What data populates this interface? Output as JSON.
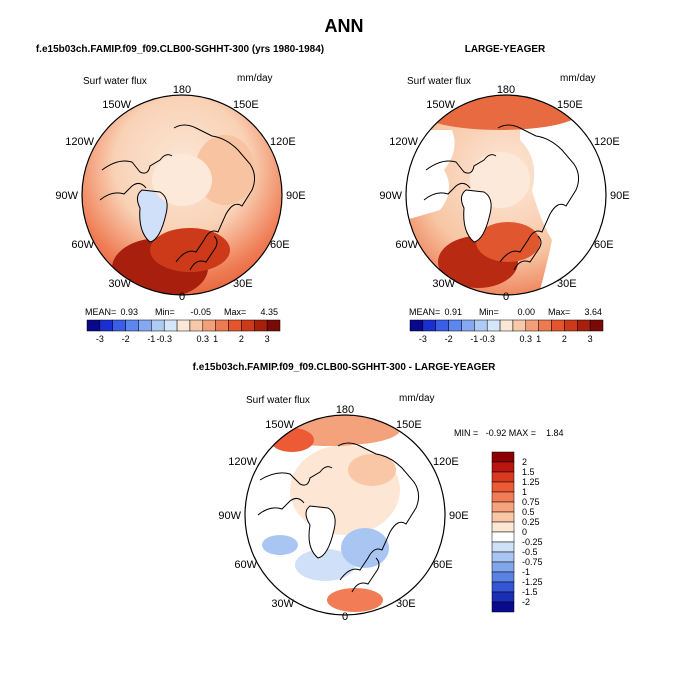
{
  "page_title": "ANN",
  "panels": {
    "left": {
      "title": "f.e15b03ch.FAMIP.f09_f09.CLB00-SGHHT-300 (yrs 1980-1984)",
      "var_label": "Surf water flux",
      "units": "mm/day",
      "stats": {
        "mean_label": "MEAN=",
        "mean": "0.93",
        "min_label": "Min=",
        "min": "-0.05",
        "max_label": "Max=",
        "max": "4.35"
      }
    },
    "right": {
      "title": "LARGE-YEAGER",
      "var_label": "Surf water flux",
      "units": "mm/day",
      "stats": {
        "mean_label": "MEAN=",
        "mean": "0.91",
        "min_label": "Min=",
        "min": "0.00",
        "max_label": "Max=",
        "max": "3.64"
      }
    },
    "diff": {
      "title": "f.e15b03ch.FAMIP.f09_f09.CLB00-SGHHT-300 - LARGE-YEAGER",
      "var_label": "Surf water flux",
      "units": "mm/day",
      "minmax_text": "MIN =   -0.92 MAX =    1.84"
    }
  },
  "lon_labels": [
    "180",
    "150E",
    "120E",
    "90E",
    "60E",
    "30E",
    "0",
    "30W",
    "60W",
    "90W",
    "120W",
    "150W"
  ],
  "colorbar_h": {
    "labels": [
      "-3",
      "-2",
      "-1",
      "-0.3",
      "0.3",
      "1",
      "2",
      "3"
    ],
    "colors": [
      "#08088c",
      "#1a2fd0",
      "#3a5ee8",
      "#5c86f0",
      "#86a8f2",
      "#aecbf5",
      "#d6e6fa",
      "#fbe7d6",
      "#f8c9a8",
      "#f3a07a",
      "#ee7a52",
      "#e4552e",
      "#cc3a19",
      "#a8200d",
      "#7a0a06"
    ]
  },
  "colorbar_v": {
    "labels": [
      "2",
      "1.5",
      "1.25",
      "1",
      "0.75",
      "0.5",
      "0.25",
      "0",
      "-0.25",
      "-0.5",
      "-0.75",
      "-1",
      "-1.25",
      "-1.5",
      "-2"
    ],
    "colors": [
      "#8b0000",
      "#b8160e",
      "#d83a1f",
      "#ec5a36",
      "#f27c56",
      "#f6a27c",
      "#f9c7a6",
      "#fce6d4",
      "#ffffff",
      "#cfe0f8",
      "#a9c6f2",
      "#82a6ec",
      "#5a82e4",
      "#3355d6",
      "#1a2db5",
      "#0a0a8f"
    ]
  },
  "chart_data": [
    {
      "type": "heatmap",
      "projection": "north-polar-stereographic",
      "title": "f.e15b03ch.FAMIP.f09_f09.CLB00-SGHHT-300 (yrs 1980-1984)",
      "variable": "Surf water flux",
      "units": "mm/day",
      "mean": 0.93,
      "min": -0.05,
      "max": 4.35,
      "contour_levels": [
        -3,
        -2,
        -1,
        -0.3,
        0.3,
        1,
        2,
        3
      ]
    },
    {
      "type": "heatmap",
      "projection": "north-polar-stereographic",
      "title": "LARGE-YEAGER",
      "variable": "Surf water flux",
      "units": "mm/day",
      "mean": 0.91,
      "min": 0.0,
      "max": 3.64,
      "contour_levels": [
        -3,
        -2,
        -1,
        -0.3,
        0.3,
        1,
        2,
        3
      ]
    },
    {
      "type": "heatmap",
      "projection": "north-polar-stereographic",
      "title": "f.e15b03ch.FAMIP.f09_f09.CLB00-SGHHT-300 - LARGE-YEAGER",
      "variable": "Surf water flux",
      "units": "mm/day",
      "min": -0.92,
      "max": 1.84,
      "contour_levels": [
        -2,
        -1.5,
        -1.25,
        -1,
        -0.75,
        -0.5,
        -0.25,
        0,
        0.25,
        0.5,
        0.75,
        1,
        1.25,
        1.5,
        2
      ]
    }
  ]
}
